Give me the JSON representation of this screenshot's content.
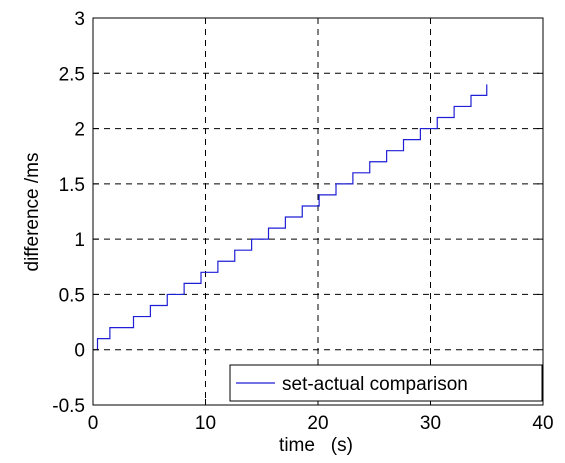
{
  "chart_data": {
    "type": "line",
    "xlabel": "time   (s)",
    "ylabel": "difference /ms",
    "xlim": [
      0,
      40
    ],
    "ylim": [
      -0.5,
      3
    ],
    "xticks": [
      0,
      10,
      20,
      30,
      40
    ],
    "yticks": [
      -0.5,
      0,
      0.5,
      1,
      1.5,
      2,
      2.5,
      3
    ],
    "xtick_labels": [
      "0",
      "10",
      "20",
      "30",
      "40"
    ],
    "ytick_labels": [
      "-0.5",
      "0",
      "0.5",
      "1",
      "1.5",
      "2",
      "2.5",
      "3"
    ],
    "grid": true,
    "legend_position": "bottom-right",
    "colors": {
      "series": "#1f1fd6",
      "grid": "#000000",
      "axes": "#000000"
    },
    "series": [
      {
        "name": "set-actual comparison",
        "x": [
          0.4,
          0.4,
          1.5,
          1.5,
          3.6,
          3.6,
          5.1,
          5.1,
          6.6,
          6.6,
          8.1,
          8.1,
          9.6,
          9.6,
          11.1,
          11.1,
          12.6,
          12.6,
          14.1,
          14.1,
          15.6,
          15.6,
          17.1,
          17.1,
          18.6,
          18.6,
          20.1,
          20.1,
          21.6,
          21.6,
          23.1,
          23.1,
          24.6,
          24.6,
          26.1,
          26.1,
          27.6,
          27.6,
          29.1,
          29.1,
          30.6,
          30.6,
          32.1,
          32.1,
          33.6,
          33.6,
          35.0,
          35.0
        ],
        "y": [
          0.0,
          0.1,
          0.1,
          0.2,
          0.2,
          0.3,
          0.3,
          0.4,
          0.4,
          0.5,
          0.5,
          0.6,
          0.6,
          0.7,
          0.7,
          0.8,
          0.8,
          0.9,
          0.9,
          1.0,
          1.0,
          1.1,
          1.1,
          1.2,
          1.2,
          1.3,
          1.3,
          1.4,
          1.4,
          1.5,
          1.5,
          1.6,
          1.6,
          1.7,
          1.7,
          1.8,
          1.8,
          1.9,
          1.9,
          2.0,
          2.0,
          2.1,
          2.1,
          2.2,
          2.2,
          2.3,
          2.3,
          2.4
        ]
      }
    ]
  }
}
